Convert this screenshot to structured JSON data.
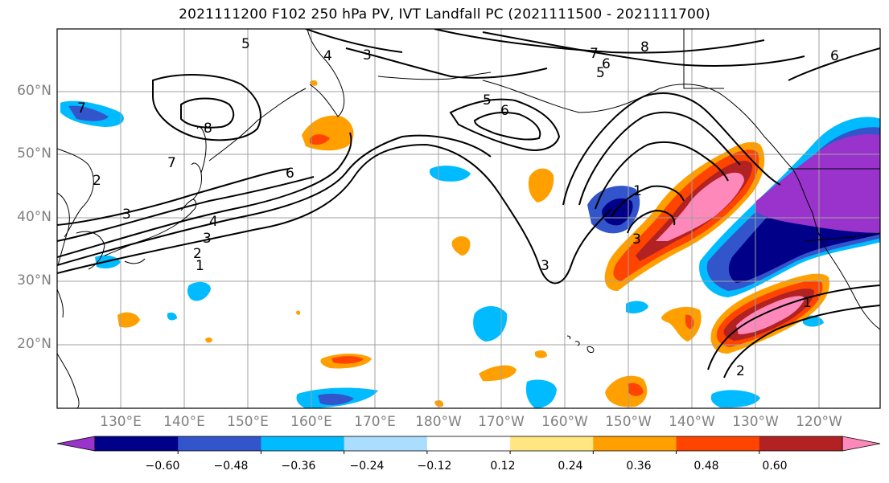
{
  "title": "2021111200 F102 250 hPa PV, IVT Landfall PC (2021111500 - 2021111700)",
  "lat_labels": [
    "60°N",
    "50°N",
    "40°N",
    "30°N",
    "20°N"
  ],
  "lon_labels": [
    "130°E",
    "140°E",
    "150°E",
    "160°E",
    "170°E",
    "180°W",
    "170°W",
    "160°W",
    "150°W",
    "140°W",
    "130°W",
    "120°W"
  ],
  "colorbar": {
    "colors": [
      "#9933cc",
      "#000088",
      "#3355cc",
      "#00bbff",
      "#aaddff",
      "#ffffff",
      "#ffe680",
      "#ffa000",
      "#ff4400",
      "#b22222",
      "#ff88bb"
    ],
    "tick_labels": [
      "−0.60",
      "−0.48",
      "−0.36",
      "−0.24",
      "−0.12",
      "0.12",
      "0.24",
      "0.36",
      "0.48",
      "0.60"
    ]
  },
  "contour_labels": [
    "5",
    "4",
    "3",
    "8",
    "7",
    "6",
    "5",
    "6",
    "5",
    "6",
    "8",
    "7",
    "6",
    "3",
    "4",
    "3",
    "2",
    "1",
    "1",
    "3",
    "3",
    "1",
    "2",
    "7",
    "2"
  ]
}
